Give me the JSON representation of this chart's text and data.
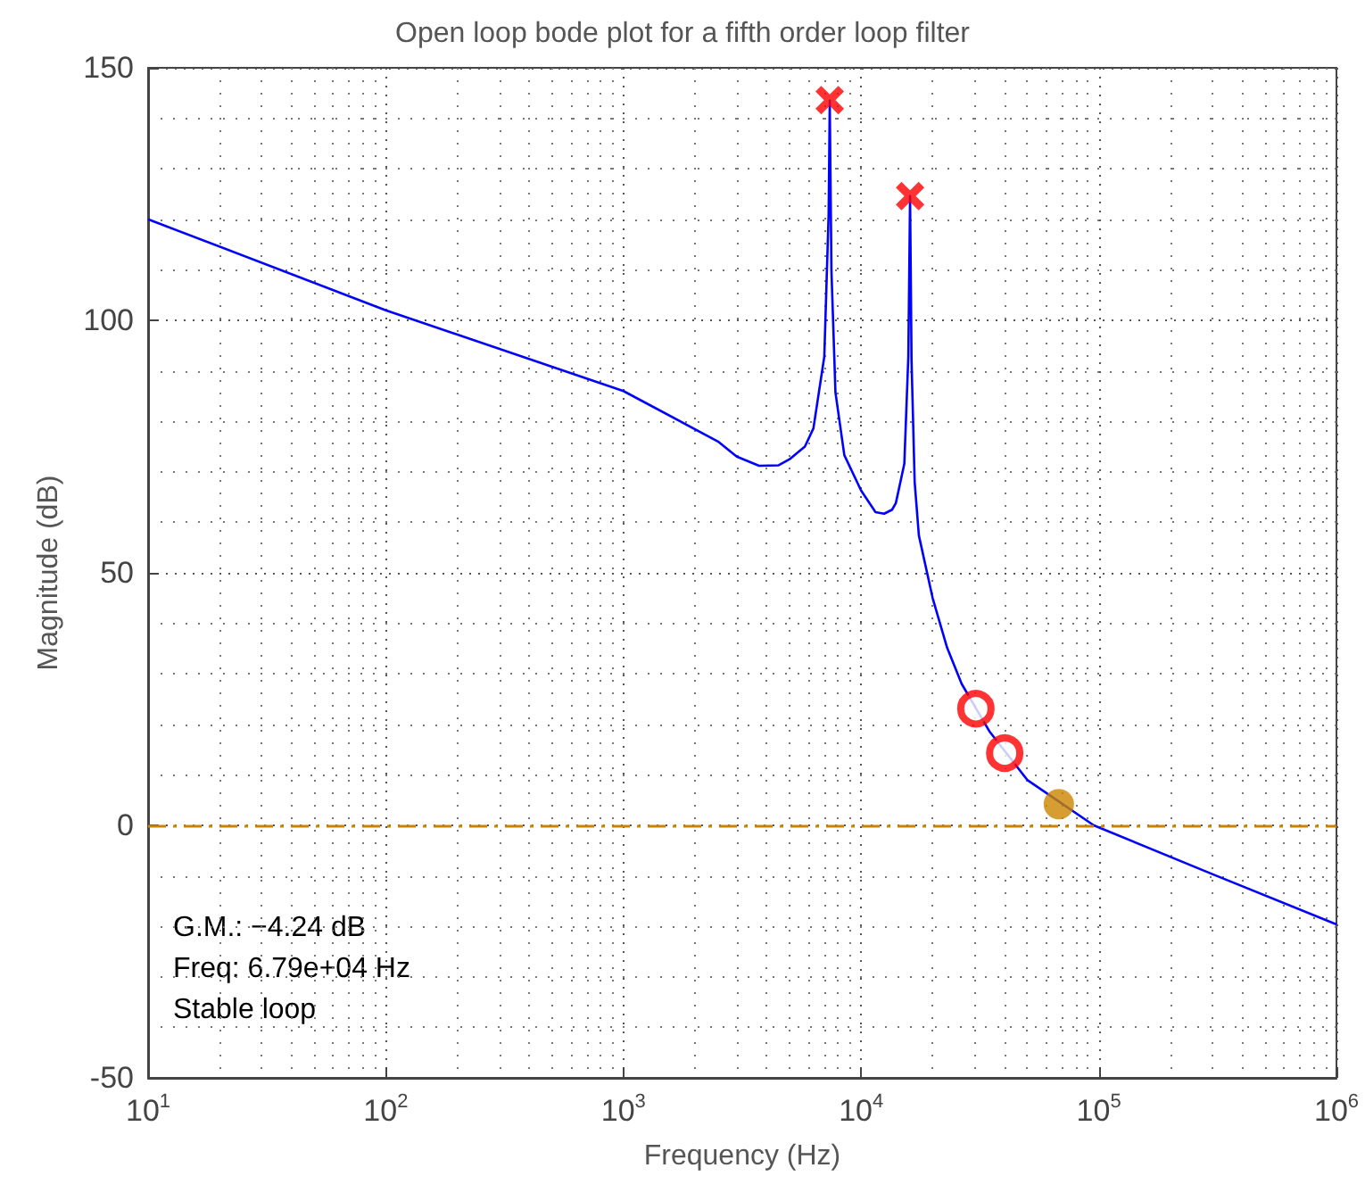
{
  "chart_data": {
    "type": "line",
    "title": "Open loop bode plot for a fifth order loop filter",
    "xlabel": "Frequency (Hz)",
    "ylabel": "Magnitude (dB)",
    "log": "x",
    "xlim": [
      10,
      1000000
    ],
    "xticks": [
      {
        "value": 10,
        "label": "10$^{1}$"
      },
      {
        "value": 100,
        "label": "10$^{2}$"
      },
      {
        "value": 1000,
        "label": "10$^{3}$"
      },
      {
        "value": 10000,
        "label": "10$^{4}$"
      },
      {
        "value": 100000,
        "label": "10$^{5}$"
      },
      {
        "value": 1000000,
        "label": "10$^{6}$"
      }
    ],
    "ylim": [
      -50,
      150
    ],
    "yticks": [
      -50,
      0,
      50,
      100,
      150
    ],
    "grid": true,
    "series": [
      {
        "color": "#0000ff",
        "marker": "none",
        "x": [
          10,
          100,
          1000,
          2500,
          3000,
          3720,
          4500,
          5000,
          5800,
          6300,
          7000,
          7300,
          7380,
          7500,
          7800,
          8500,
          10000,
          11500,
          12500,
          13500,
          14000,
          15200,
          15800,
          16070,
          16300,
          16800,
          17500,
          20000,
          23000,
          26500,
          34800,
          50000,
          95300,
          302000,
          1000000
        ],
        "values": [
          120,
          102,
          86,
          76,
          73,
          71.2,
          71.3,
          72.5,
          75,
          78.6,
          92.8,
          121,
          143.5,
          110,
          85.7,
          73.3,
          66.3,
          62,
          61.7,
          62.5,
          63.8,
          71.6,
          92.8,
          124.6,
          92,
          68,
          57.4,
          45,
          35.2,
          28,
          18.5,
          9,
          0,
          -9.7,
          -19.6
        ]
      },
      {
        "type": "scatter",
        "color": "#ff0000",
        "marker": "cross",
        "x": [
          7380,
          16070
        ],
        "values": [
          143.6,
          124.6
        ]
      },
      {
        "type": "scatter",
        "color": "#ff0000",
        "marker": "circle",
        "x": [
          30400,
          40200
        ],
        "values": [
          23.1,
          14.3
        ]
      },
      {
        "type": "scatter",
        "color": "#cc8400",
        "marker": "circle",
        "x": [
          67900
        ],
        "values": [
          4.2
        ]
      }
    ],
    "ref_lines": [
      {
        "axis": "y",
        "value": 0,
        "color": "#cc8400",
        "line_style": "dashdot"
      }
    ],
    "annotations": [
      "G.M.: −4.24 dB",
      "Freq: 6.79e+04 Hz",
      "Stable loop"
    ]
  }
}
